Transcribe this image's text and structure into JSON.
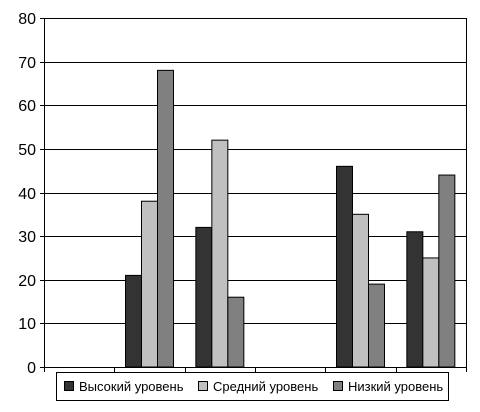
{
  "chart_data": {
    "type": "bar",
    "categories": [
      "",
      "",
      "",
      "",
      "",
      ""
    ],
    "series": [
      {
        "name": "Высокий уровень",
        "values": [
          null,
          21,
          32,
          null,
          46,
          31
        ],
        "color": "#333333"
      },
      {
        "name": "Средний уровень",
        "values": [
          null,
          38,
          52,
          null,
          35,
          25
        ],
        "color": "#c0c0c0"
      },
      {
        "name": "Низкий уровень",
        "values": [
          null,
          68,
          16,
          null,
          19,
          44
        ],
        "color": "#808080"
      }
    ],
    "title": "",
    "xlabel": "",
    "ylabel": "",
    "ylim": [
      0,
      80
    ],
    "yticks": [
      0,
      10,
      20,
      30,
      40,
      50,
      60,
      70,
      80
    ],
    "grid": true,
    "legend_position": "bottom"
  }
}
